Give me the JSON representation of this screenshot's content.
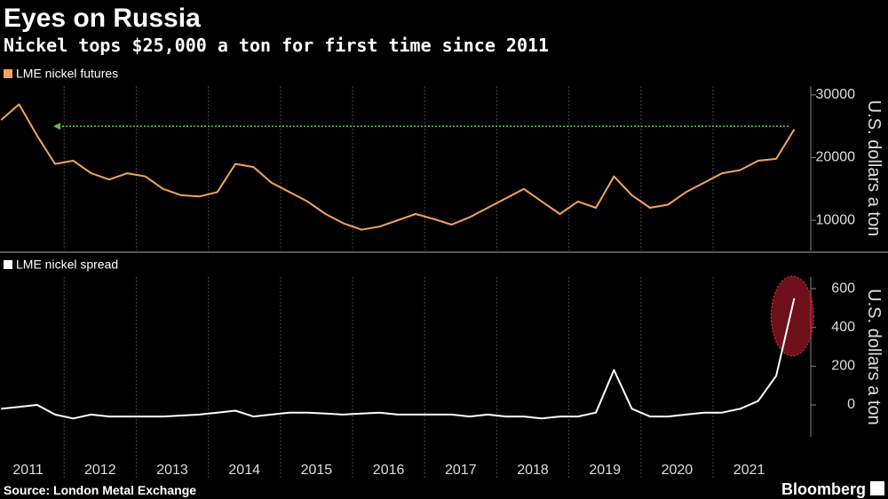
{
  "title": "Eyes on Russia",
  "subtitle": "Nickel tops $25,000 a ton for first time since 2011",
  "source": "Source: London Metal Exchange",
  "brand": "Bloomberg",
  "chart_data": [
    {
      "type": "line",
      "categories": [
        "2011",
        null,
        null,
        null,
        "2012",
        null,
        null,
        null,
        "2013",
        null,
        null,
        null,
        "2014",
        null,
        null,
        null,
        "2015",
        null,
        null,
        null,
        "2016",
        null,
        null,
        null,
        "2017",
        null,
        null,
        null,
        "2018",
        null,
        null,
        null,
        "2019",
        null,
        null,
        null,
        "2020",
        null,
        null,
        null,
        "2021",
        null,
        null,
        null,
        null
      ],
      "series": [
        {
          "name": "LME nickel futures",
          "color": "#f5a55a",
          "values": [
            26000,
            28500,
            23500,
            19000,
            19500,
            17500,
            16500,
            17500,
            17000,
            15000,
            14000,
            13800,
            14500,
            19000,
            18500,
            16000,
            14500,
            13000,
            11000,
            9500,
            8500,
            9000,
            10000,
            11000,
            10200,
            9300,
            10500,
            12000,
            13500,
            15000,
            13000,
            11000,
            13000,
            12000,
            17000,
            14000,
            12000,
            12500,
            14500,
            16000,
            17500,
            18000,
            19500,
            19800,
            24500
          ]
        }
      ],
      "y_label": "U.S. dollars a ton",
      "ylim": [
        5200,
        31400
      ],
      "yticks": [
        10000,
        20000,
        30000
      ],
      "reference_line": 25000,
      "reference_color": "#5bbf3a"
    },
    {
      "type": "line",
      "categories": [
        "2011",
        null,
        null,
        null,
        "2012",
        null,
        null,
        null,
        "2013",
        null,
        null,
        null,
        "2014",
        null,
        null,
        null,
        "2015",
        null,
        null,
        null,
        "2016",
        null,
        null,
        null,
        "2017",
        null,
        null,
        null,
        "2018",
        null,
        null,
        null,
        "2019",
        null,
        null,
        null,
        "2020",
        null,
        null,
        null,
        "2021",
        null,
        null,
        null,
        null
      ],
      "series": [
        {
          "name": "LME nickel spread",
          "color": "#ffffff",
          "values": [
            -20,
            -10,
            0,
            -50,
            -70,
            -50,
            -60,
            -60,
            -60,
            -60,
            -55,
            -50,
            -40,
            -30,
            -60,
            -50,
            -40,
            -40,
            -45,
            -50,
            -45,
            -40,
            -50,
            -50,
            -50,
            -50,
            -60,
            -50,
            -60,
            -60,
            -70,
            -60,
            -60,
            -40,
            180,
            -20,
            -60,
            -60,
            -50,
            -40,
            -40,
            -20,
            20,
            150,
            550
          ]
        }
      ],
      "y_label": "U.S. dollars a ton",
      "ylim": [
        -165,
        660
      ],
      "yticks": [
        0,
        200,
        400,
        600
      ]
    }
  ]
}
